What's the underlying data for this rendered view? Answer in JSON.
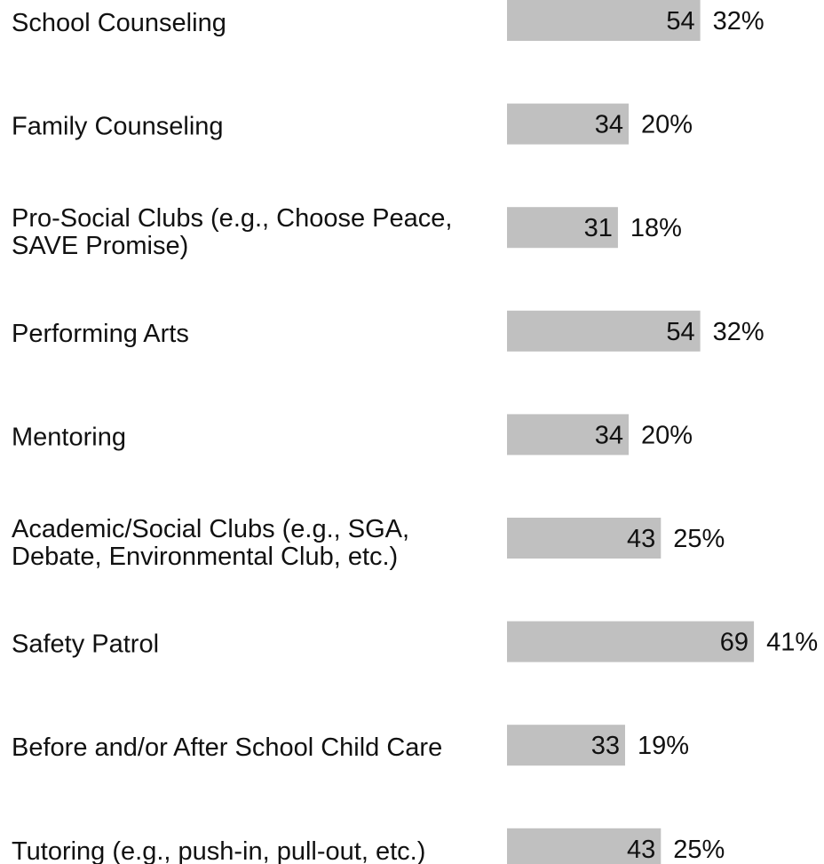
{
  "chart_data": {
    "type": "bar",
    "orientation": "horizontal",
    "categories": [
      [
        "School Counseling"
      ],
      [
        "Family Counseling"
      ],
      [
        "Pro-Social Clubs (e.g., Choose Peace,",
        "SAVE Promise)"
      ],
      [
        "Performing Arts"
      ],
      [
        "Mentoring"
      ],
      [
        "Academic/Social Clubs (e.g., SGA,",
        "Debate, Environmental Club, etc.)"
      ],
      [
        "Safety Patrol"
      ],
      [
        "Before and/or After School Child Care"
      ],
      [
        "Tutoring (e.g., push-in, pull-out, etc.)"
      ]
    ],
    "values": [
      54,
      34,
      31,
      54,
      34,
      43,
      69,
      33,
      43
    ],
    "percent_labels": [
      "32%",
      "20%",
      "18%",
      "32%",
      "20%",
      "25%",
      "41%",
      "19%",
      "25%"
    ],
    "bar_color": "#c0c0c0",
    "grid": false,
    "legend": "none"
  }
}
